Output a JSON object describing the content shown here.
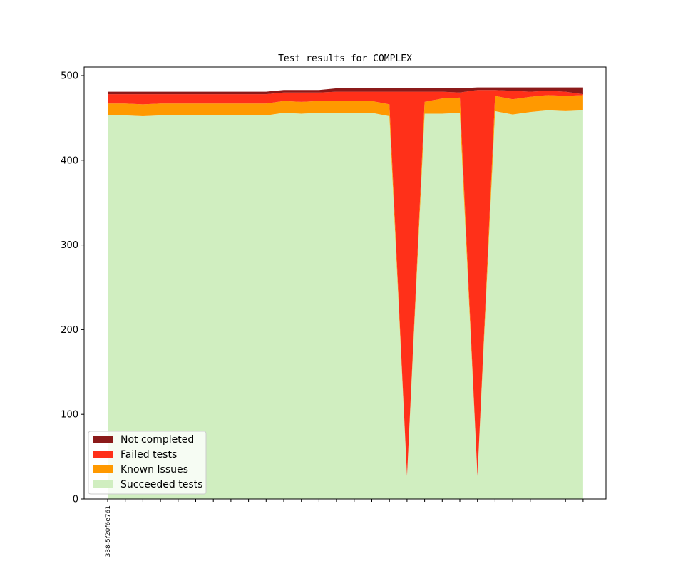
{
  "chart_data": {
    "type": "area",
    "stacked": true,
    "title": "Test results for COMPLEX",
    "xlabel": "",
    "ylabel": "",
    "ylim": [
      0,
      510
    ],
    "yticks": [
      0,
      100,
      200,
      300,
      400,
      500
    ],
    "grid": false,
    "legend_position": "lower-left",
    "xtick_labels": [
      "338-5f20f6e761"
    ],
    "x": [
      0,
      1,
      2,
      3,
      4,
      5,
      6,
      7,
      8,
      9,
      10,
      11,
      12,
      13,
      14,
      15,
      16,
      17,
      18,
      19,
      20,
      21,
      22,
      23,
      24,
      25,
      26,
      27
    ],
    "series": [
      {
        "name": "Succeeded tests",
        "color": "#d0eec0",
        "values": [
          453,
          453,
          452,
          453,
          453,
          453,
          453,
          453,
          453,
          453,
          456,
          455,
          456,
          456,
          456,
          456,
          452,
          27,
          455,
          455,
          456,
          27,
          458,
          454,
          457,
          459,
          458,
          459
        ]
      },
      {
        "name": "Known Issues",
        "color": "#ff9900",
        "values": [
          14,
          14,
          14,
          14,
          14,
          14,
          14,
          14,
          14,
          14,
          14,
          14,
          14,
          14,
          14,
          14,
          14,
          0,
          14,
          18,
          18,
          0,
          18,
          18,
          18,
          18,
          18,
          18
        ]
      },
      {
        "name": "Failed tests",
        "color": "#ff3019",
        "values": [
          11,
          11,
          12,
          11,
          11,
          11,
          11,
          11,
          11,
          11,
          10,
          11,
          10,
          11,
          11,
          11,
          15,
          454,
          12,
          8,
          6,
          456,
          7,
          10,
          6,
          5,
          5,
          1
        ]
      },
      {
        "name": "Not completed",
        "color": "#8b1a1a",
        "values": [
          3,
          3,
          3,
          3,
          3,
          3,
          3,
          3,
          3,
          3,
          3,
          3,
          3,
          4,
          4,
          4,
          4,
          4,
          4,
          4,
          5,
          3,
          3,
          4,
          5,
          4,
          5,
          8
        ]
      }
    ]
  }
}
